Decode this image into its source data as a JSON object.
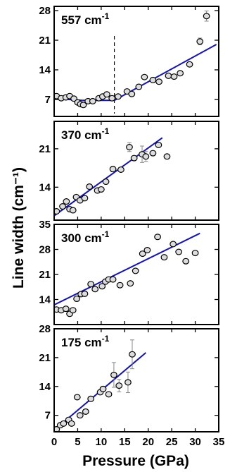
{
  "chart_data": {
    "type": "scatter",
    "xlabel": "Pressure (GPa)",
    "ylabel": "Line width (cm⁻¹)",
    "x_ticks": [
      0,
      5,
      10,
      15,
      20,
      25,
      30,
      35
    ],
    "xlim": [
      0,
      35
    ],
    "colors": {
      "marker_fill": "#dddddd",
      "marker_edge": "#000000",
      "fit_line": "#1010c8",
      "errorbar": "#888888"
    },
    "panels": [
      {
        "label": "557 cm⁻¹",
        "ylim": [
          3,
          29
        ],
        "y_ticks": [
          7,
          14,
          21,
          28
        ],
        "transition_line_x": 12.8,
        "points": [
          {
            "x": 0.5,
            "y": 7.8
          },
          {
            "x": 1.5,
            "y": 7.3
          },
          {
            "x": 2.5,
            "y": 7.5
          },
          {
            "x": 3.3,
            "y": 7.8
          },
          {
            "x": 4.2,
            "y": 7.2
          },
          {
            "x": 5.0,
            "y": 6.3
          },
          {
            "x": 5.6,
            "y": 5.9
          },
          {
            "x": 6.2,
            "y": 5.7
          },
          {
            "x": 7.2,
            "y": 6.6
          },
          {
            "x": 8.2,
            "y": 6.6
          },
          {
            "x": 9.5,
            "y": 7.3
          },
          {
            "x": 10.3,
            "y": 7.7
          },
          {
            "x": 11.2,
            "y": 8.2
          },
          {
            "x": 12.3,
            "y": 7.3
          },
          {
            "x": 13.6,
            "y": 7.7
          },
          {
            "x": 15.5,
            "y": 8.9
          },
          {
            "x": 16.5,
            "y": 8.3
          },
          {
            "x": 18.0,
            "y": 10.0
          },
          {
            "x": 19.2,
            "y": 12.3
          },
          {
            "x": 21.0,
            "y": 11.6
          },
          {
            "x": 22.3,
            "y": 11.2
          },
          {
            "x": 24.3,
            "y": 12.6
          },
          {
            "x": 25.5,
            "y": 12.4
          },
          {
            "x": 26.8,
            "y": 13.2
          },
          {
            "x": 28.8,
            "y": 15.3
          },
          {
            "x": 31.0,
            "y": 20.7,
            "err": 0.8
          },
          {
            "x": 32.4,
            "y": 26.7,
            "err": 1.2
          }
        ],
        "fit_segments": [
          {
            "x": [
              0,
              6
            ],
            "y": [
              7.2,
              6.8
            ]
          },
          {
            "x": [
              6,
              12.8
            ],
            "y": [
              6.8,
              6.8
            ]
          },
          {
            "x": [
              12.8,
              34.5
            ],
            "y": [
              6.8,
              20.0
            ]
          }
        ]
      },
      {
        "label": "370 cm⁻¹",
        "ylim": [
          8,
          26
        ],
        "y_ticks": [
          14,
          21
        ],
        "points": [
          {
            "x": 0.5,
            "y": 9.6
          },
          {
            "x": 1.8,
            "y": 10.5
          },
          {
            "x": 2.6,
            "y": 11.4
          },
          {
            "x": 3.3,
            "y": 10.0
          },
          {
            "x": 4.0,
            "y": 9.8
          },
          {
            "x": 4.7,
            "y": 12.2
          },
          {
            "x": 5.5,
            "y": 11.6
          },
          {
            "x": 6.5,
            "y": 12.0
          },
          {
            "x": 7.5,
            "y": 14.1
          },
          {
            "x": 9.2,
            "y": 13.4
          },
          {
            "x": 10.0,
            "y": 13.6
          },
          {
            "x": 11.0,
            "y": 15.0
          },
          {
            "x": 12.5,
            "y": 17.3,
            "err": 0.5
          },
          {
            "x": 14.2,
            "y": 17.2
          },
          {
            "x": 16.0,
            "y": 21.3,
            "err": 0.8
          },
          {
            "x": 17.0,
            "y": 19.3
          },
          {
            "x": 18.7,
            "y": 20.0,
            "err": 1.5
          },
          {
            "x": 19.5,
            "y": 19.6,
            "err": 0.9
          },
          {
            "x": 21.0,
            "y": 20.2
          },
          {
            "x": 22.2,
            "y": 21.7
          },
          {
            "x": 24.0,
            "y": 19.6
          }
        ],
        "fit_segments": [
          {
            "x": [
              0,
              23.0
            ],
            "y": [
              8.8,
              23.0
            ]
          }
        ]
      },
      {
        "label": "300 cm⁻¹",
        "ylim": [
          7,
          35
        ],
        "y_ticks": [
          14,
          21,
          28,
          35
        ],
        "points": [
          {
            "x": 0.5,
            "y": 11.2
          },
          {
            "x": 1.5,
            "y": 11.0
          },
          {
            "x": 2.5,
            "y": 11.4
          },
          {
            "x": 3.3,
            "y": 10.0
          },
          {
            "x": 4.0,
            "y": 11.0
          },
          {
            "x": 4.8,
            "y": 14.2
          },
          {
            "x": 5.7,
            "y": 15.5
          },
          {
            "x": 6.5,
            "y": 15.6
          },
          {
            "x": 7.8,
            "y": 18.3
          },
          {
            "x": 8.7,
            "y": 16.9
          },
          {
            "x": 10.2,
            "y": 17.7
          },
          {
            "x": 10.9,
            "y": 19.0
          },
          {
            "x": 11.6,
            "y": 19.6
          },
          {
            "x": 12.5,
            "y": 19.6
          },
          {
            "x": 14.0,
            "y": 18.0
          },
          {
            "x": 16.2,
            "y": 18.5
          },
          {
            "x": 17.3,
            "y": 22.0
          },
          {
            "x": 18.8,
            "y": 26.8
          },
          {
            "x": 19.8,
            "y": 27.8
          },
          {
            "x": 22.0,
            "y": 31.5
          },
          {
            "x": 23.4,
            "y": 25.8
          },
          {
            "x": 25.3,
            "y": 29.5
          },
          {
            "x": 26.5,
            "y": 27.3
          },
          {
            "x": 28.0,
            "y": 24.7
          },
          {
            "x": 30.0,
            "y": 27.0
          }
        ],
        "fit_segments": [
          {
            "x": [
              0,
              31.0
            ],
            "y": [
              12.5,
              32.5
            ]
          }
        ]
      },
      {
        "label": "175 cm⁻¹",
        "ylim": [
          3,
          28
        ],
        "y_ticks": [
          7,
          14,
          21,
          28
        ],
        "points": [
          {
            "x": 0.5,
            "y": 3.6
          },
          {
            "x": 1.3,
            "y": 4.6
          },
          {
            "x": 2.0,
            "y": 5.0
          },
          {
            "x": 3.1,
            "y": 5.9
          },
          {
            "x": 3.7,
            "y": 5.0
          },
          {
            "x": 4.9,
            "y": 11.4
          },
          {
            "x": 5.5,
            "y": 7.0
          },
          {
            "x": 6.7,
            "y": 7.9
          },
          {
            "x": 7.8,
            "y": 11.0
          },
          {
            "x": 9.8,
            "y": 12.6
          },
          {
            "x": 10.4,
            "y": 13.4
          },
          {
            "x": 11.6,
            "y": 12.1
          },
          {
            "x": 12.7,
            "y": 16.8,
            "err": 3.0
          },
          {
            "x": 13.8,
            "y": 14.2,
            "err": 1.5
          },
          {
            "x": 15.7,
            "y": 15.0,
            "err": 2.5
          },
          {
            "x": 16.6,
            "y": 21.8,
            "err": 3.5
          }
        ],
        "fit_segments": [
          {
            "x": [
              0,
              19.5
            ],
            "y": [
              3.4,
              22.2
            ]
          }
        ]
      }
    ]
  }
}
